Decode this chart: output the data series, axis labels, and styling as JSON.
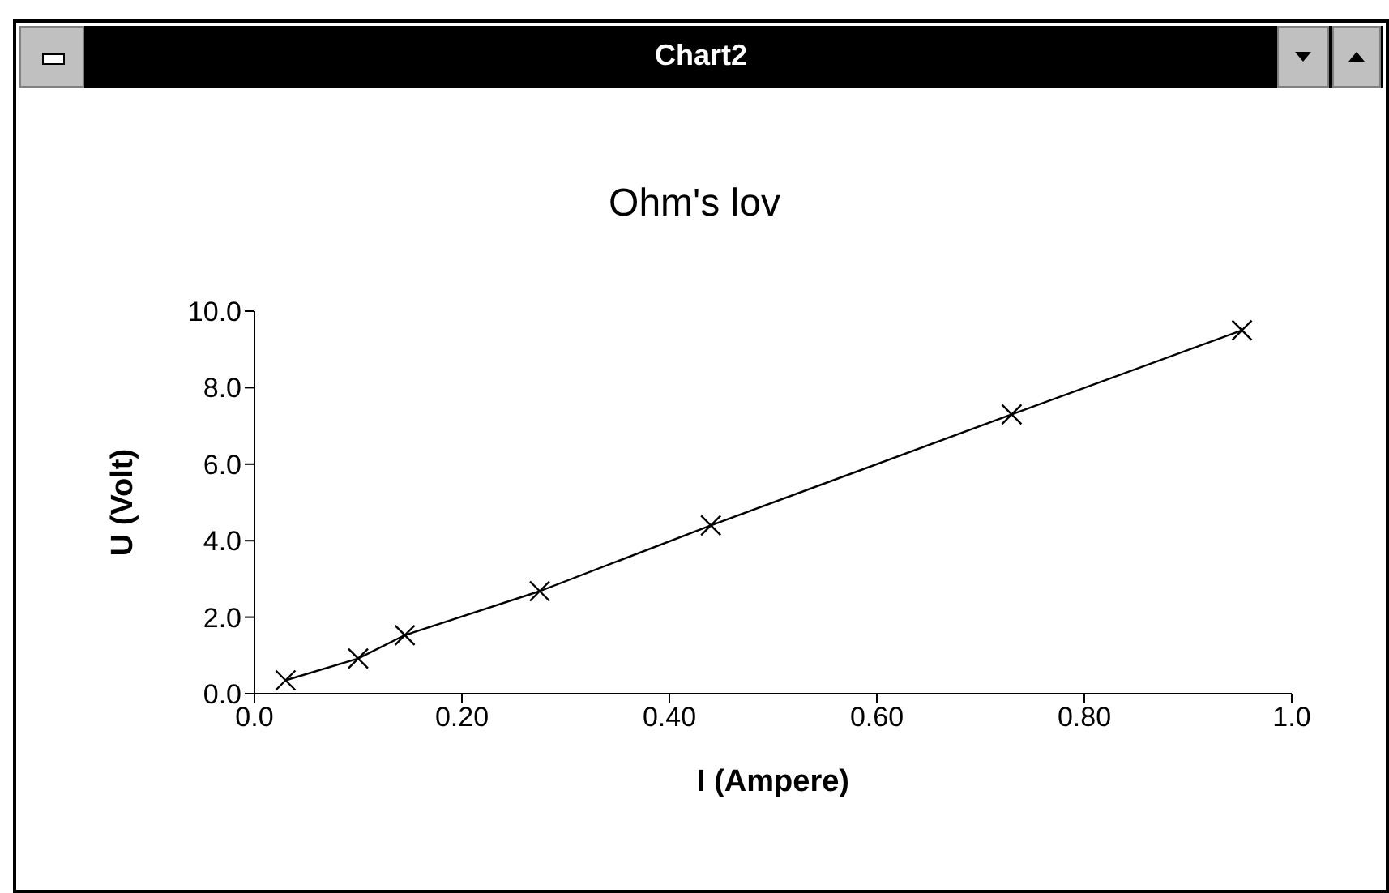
{
  "chart_data": {
    "type": "line",
    "title": "Ohm's lov",
    "xlabel": "I (Ampere)",
    "ylabel": "U (Volt)",
    "annotations": [
      "Chart2"
    ],
    "x": [
      0.03,
      0.1,
      0.145,
      0.275,
      0.44,
      0.73,
      0.952
    ],
    "series": [
      {
        "color": "#000000",
        "values": [
          0.35,
          0.92,
          1.53,
          2.68,
          4.4,
          7.3,
          9.5
        ]
      }
    ],
    "xlim": [
      0,
      1
    ],
    "xticks": [
      {
        "value": 0,
        "label": "0.0"
      },
      {
        "value": 0.2,
        "label": "0.20"
      },
      {
        "value": 0.4,
        "label": "0.40"
      },
      {
        "value": 0.6,
        "label": "0.60"
      },
      {
        "value": 0.8,
        "label": "0.80"
      },
      {
        "value": 1,
        "label": "1.0"
      }
    ],
    "ylim": [
      0,
      10
    ],
    "yticks": [
      {
        "value": 0,
        "label": "0.0"
      },
      {
        "value": 2,
        "label": "2.0"
      },
      {
        "value": 4,
        "label": "4.0"
      },
      {
        "value": 6,
        "label": "6.0"
      },
      {
        "value": 8,
        "label": "8.0"
      },
      {
        "value": 10,
        "label": "10.0"
      }
    ],
    "grid": false,
    "legend": false,
    "marker": "cross",
    "line_style": "solid"
  }
}
